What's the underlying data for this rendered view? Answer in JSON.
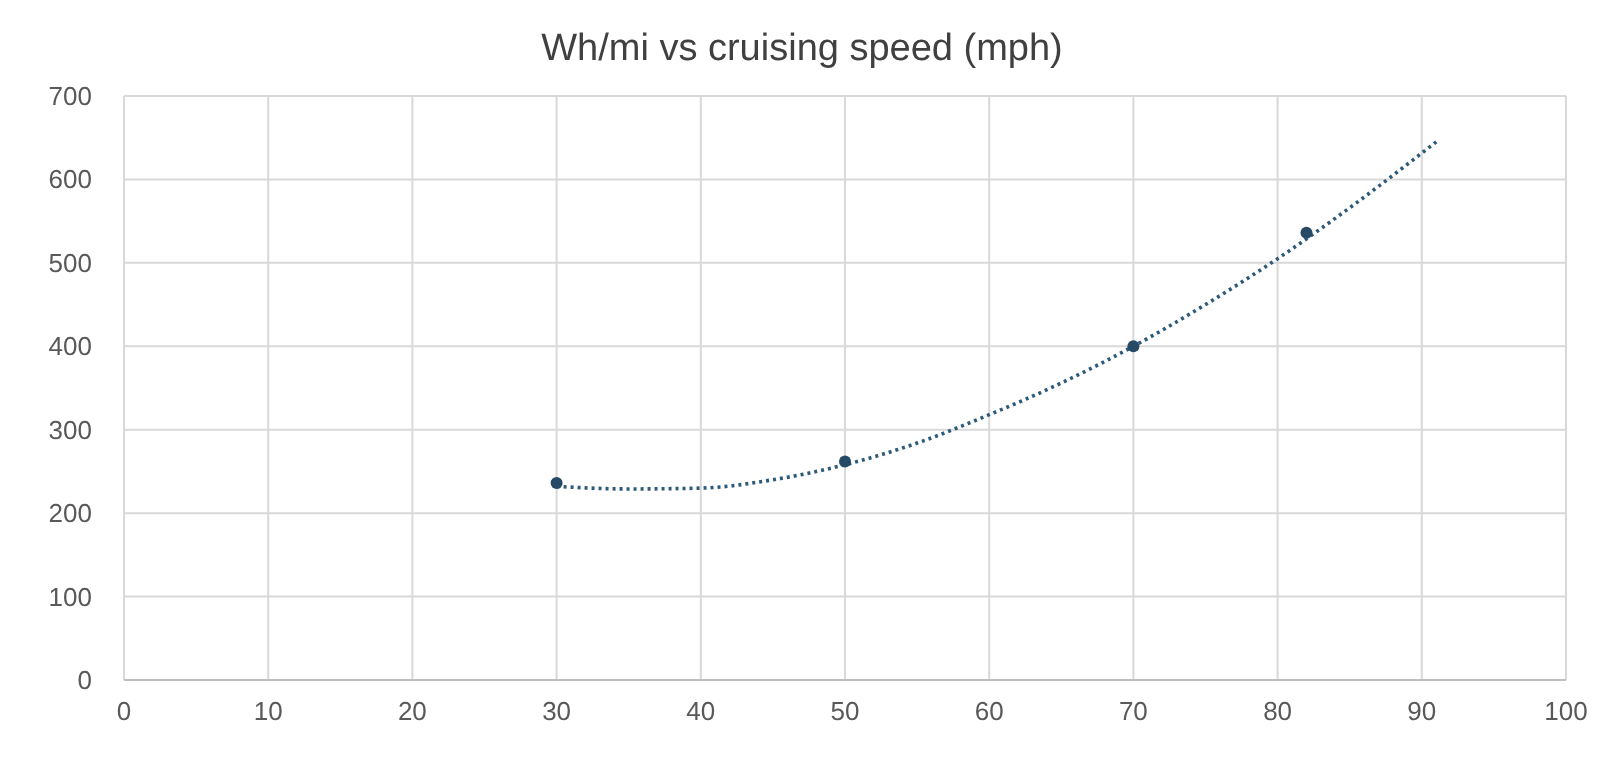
{
  "chart_data": {
    "type": "scatter",
    "title": "Wh/mi vs cruising speed (mph)",
    "series": [
      {
        "color": "#264a66",
        "x": [
          30,
          50,
          70,
          82
        ],
        "values": [
          236,
          262,
          400,
          536
        ],
        "marker": "circle"
      },
      {
        "type": "line",
        "color": "#2e5a7a",
        "x": [
          30,
          35,
          40,
          45,
          50,
          55,
          60,
          65,
          70,
          75,
          80,
          85,
          91
        ],
        "values": [
          232,
          229,
          230,
          240,
          258,
          284,
          318,
          356,
          400,
          450,
          505,
          566,
          645
        ],
        "line_style": "dotted",
        "marker": "none"
      }
    ],
    "xlim": [
      0,
      100
    ],
    "xticks": [
      0,
      10,
      20,
      30,
      40,
      50,
      60,
      70,
      80,
      90,
      100
    ],
    "ylim": [
      0,
      700
    ],
    "yticks": [
      0,
      100,
      200,
      300,
      400,
      500,
      600,
      700
    ],
    "grid": true
  }
}
